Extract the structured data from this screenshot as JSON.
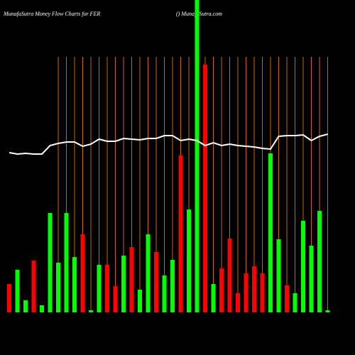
{
  "chart_data": {
    "type": "bar",
    "title": "MunafaSutra  Money Flow  Charts for FER",
    "subtitle": "() MunafaSutra.com",
    "categories": [
      null,
      null,
      null,
      null,
      null,
      null,
      null,
      null,
      null,
      null,
      null,
      null,
      null,
      null,
      null,
      null,
      null,
      null,
      null,
      null,
      null,
      null,
      null,
      null,
      null,
      null,
      null,
      null,
      null,
      null,
      null,
      null,
      null,
      null,
      null,
      null,
      null,
      null,
      null,
      null
    ],
    "series": [
      {
        "values": [
          40,
          60,
          17,
          73,
          10,
          140,
          70,
          140,
          78,
          110,
          3,
          67,
          67,
          37,
          80,
          92,
          32,
          110,
          85,
          52,
          74,
          221,
          145,
          440,
          349,
          40,
          62,
          104,
          27,
          55,
          65,
          55,
          224,
          103,
          38,
          27,
          129,
          94,
          143,
          3
        ],
        "colors": [
          "#ff0000",
          "#00ff00",
          "#00ff00",
          "#ff0000",
          "#00ff00",
          "#00ff00",
          "#00ff00",
          "#00ff00",
          "#00ff00",
          "#ff0000",
          "#00ff00",
          "#00ff00",
          "#ff0000",
          "#ff0000",
          "#00ff00",
          "#ff0000",
          "#00ff00",
          "#00ff00",
          "#ff0000",
          "#00ff00",
          "#00ff00",
          "#ff0000",
          "#00ff00",
          "#00ff00",
          "#ff0000",
          "#00ff00",
          "#ff0000",
          "#ff0000",
          "#ff0000",
          "#ff0000",
          "#ff0000",
          "#ff0000",
          "#00ff00",
          "#00ff00",
          "#ff0000",
          "#00ff00",
          "#00ff00",
          "#00ff00",
          "#00ff00",
          "#00ff00"
        ]
      },
      {
        "type": "line",
        "color": "#ffffff",
        "values": [
          225,
          223,
          224,
          223,
          223,
          235,
          238,
          240,
          240,
          234,
          237,
          244,
          241,
          241,
          245,
          244,
          243,
          245,
          245,
          249,
          249,
          242,
          244,
          242,
          235,
          239,
          235,
          237,
          235,
          234,
          233,
          231,
          230,
          248,
          249,
          249,
          250,
          242,
          248,
          251
        ]
      }
    ],
    "ylim": [
      0,
      440
    ],
    "category_line_color": "#cc6600"
  }
}
